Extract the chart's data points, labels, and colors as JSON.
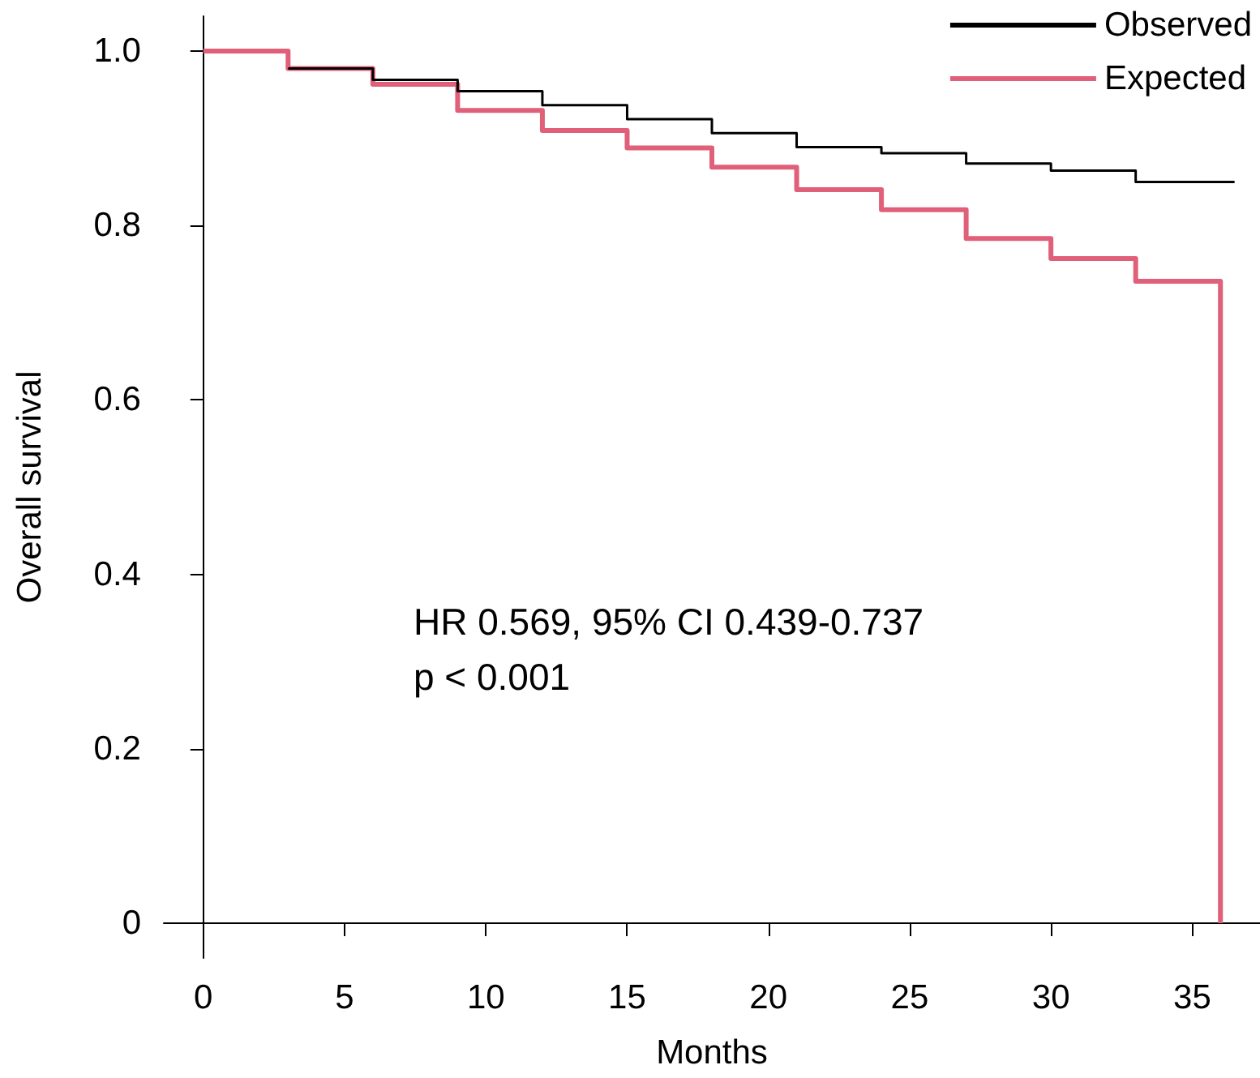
{
  "chart_data": {
    "type": "step",
    "xlabel": "Months",
    "ylabel": "Overall survival",
    "xlim": [
      -1.4,
      37.4
    ],
    "xticks": [
      0,
      5,
      10,
      15,
      20,
      25,
      30,
      35
    ],
    "ylim": [
      -0.04,
      1.04
    ],
    "yticks": [
      {
        "value": 0,
        "label": "0"
      },
      {
        "value": 0.2,
        "label": "0.2"
      },
      {
        "value": 0.4,
        "label": "0.4"
      },
      {
        "value": 0.6,
        "label": "0.6"
      },
      {
        "value": 0.8,
        "label": "0.8"
      },
      {
        "value": 1,
        "label": "1.0"
      }
    ],
    "grid": false,
    "legend": "top right",
    "annotations": [
      "HR 0.569, 95% CI 0.439-0.737",
      "p < 0.001"
    ],
    "series": [
      {
        "name": "Observed",
        "color": "#000000",
        "x": [
          3,
          6,
          9,
          12,
          15,
          18,
          21,
          24,
          27,
          30,
          33,
          36.5
        ],
        "values": [
          0.98,
          0.967,
          0.954,
          0.938,
          0.922,
          0.906,
          0.89,
          0.883,
          0.871,
          0.863,
          0.85,
          0.85
        ]
      },
      {
        "name": "Expected",
        "color": "#e0607a",
        "x": [
          0,
          3,
          6,
          9,
          12,
          15,
          18,
          21,
          24,
          27,
          30,
          33,
          36,
          36
        ],
        "values": [
          1,
          0.98,
          0.962,
          0.932,
          0.909,
          0.889,
          0.867,
          0.841,
          0.818,
          0.785,
          0.762,
          0.736,
          0.736,
          0
        ]
      }
    ]
  }
}
